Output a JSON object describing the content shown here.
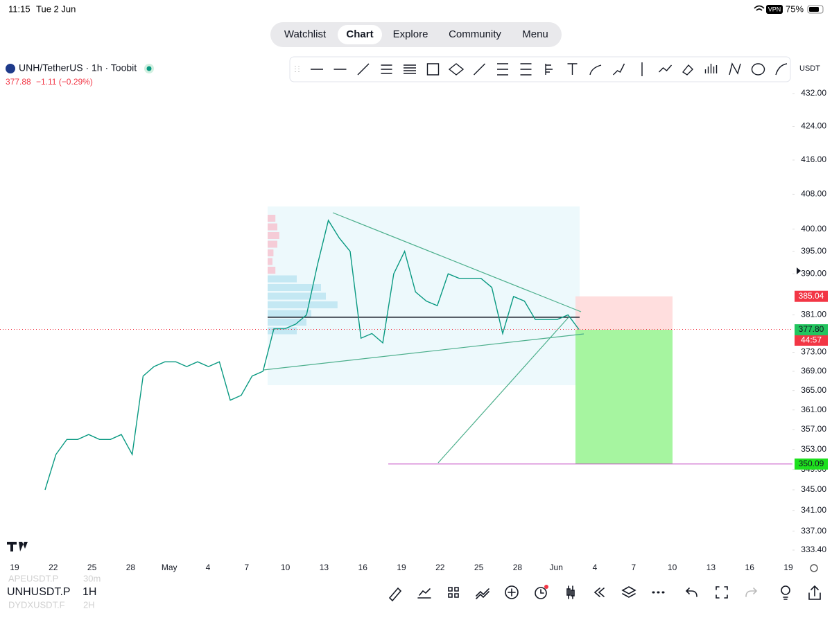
{
  "status_bar": {
    "time": "11:15",
    "date": "Tue 2 Jun",
    "vpn": "VPN",
    "battery": "75%"
  },
  "nav": {
    "tabs": [
      "Watchlist",
      "Chart",
      "Explore",
      "Community",
      "Menu"
    ],
    "active": 1
  },
  "symbol": {
    "name": "UNH/TetherUS · 1h · Toobit",
    "last": "377.88",
    "change": "−1.11 (−0.29%)"
  },
  "currency": "USDT",
  "chart_data": {
    "type": "line",
    "color": "#089981",
    "log": true,
    "values": [
      345,
      352,
      355,
      355,
      356,
      355,
      355,
      356,
      352,
      368,
      370,
      371,
      371,
      370,
      371,
      370,
      371,
      363,
      364,
      368,
      369,
      378,
      378,
      379,
      381,
      392,
      402,
      398,
      395,
      376,
      377,
      375,
      390,
      395,
      386,
      384,
      383,
      390,
      389,
      389,
      389,
      387,
      377,
      385,
      384,
      380,
      380,
      380,
      381,
      377.88
    ],
    "ylim": [
      333.4,
      432
    ],
    "yticks": [
      {
        "value": 432,
        "label": "432.00"
      },
      {
        "value": 424,
        "label": "424.00"
      },
      {
        "value": 416,
        "label": "416.00"
      },
      {
        "value": 408,
        "label": "408.00"
      },
      {
        "value": 400,
        "label": "400.00"
      },
      {
        "value": 395,
        "label": "395.00"
      },
      {
        "value": 390,
        "label": "390.00"
      },
      {
        "value": 381,
        "label": "381.00"
      },
      {
        "value": 373,
        "label": "373.00"
      },
      {
        "value": 369,
        "label": "369.00"
      },
      {
        "value": 365,
        "label": "365.00"
      },
      {
        "value": 361,
        "label": "361.00"
      },
      {
        "value": 357,
        "label": "357.00"
      },
      {
        "value": 353,
        "label": "353.00"
      },
      {
        "value": 349,
        "label": "349.00"
      },
      {
        "value": 345,
        "label": "345.00"
      },
      {
        "value": 341,
        "label": "341.00"
      },
      {
        "value": 337,
        "label": "337.00"
      },
      {
        "value": 333.4,
        "label": "333.40"
      }
    ],
    "xticks": [
      "19",
      "22",
      "25",
      "28",
      "May",
      "4",
      "7",
      "10",
      "13",
      "16",
      "19",
      "22",
      "25",
      "28",
      "Jun",
      "4",
      "7",
      "10",
      "13",
      "16",
      "19"
    ],
    "position": {
      "stop": 385.04,
      "entry": {
        "value": 377.8,
        "label": "377.80"
      },
      "target": 350.09,
      "countdown": "44:57"
    },
    "level": 380.5,
    "volume_profile": [
      8,
      10,
      12,
      10,
      6,
      5,
      8,
      30,
      55,
      60,
      72,
      45,
      40,
      30
    ]
  },
  "bottom_bar": {
    "symbol": "UNHUSDT.P",
    "interval": "1H",
    "ghost": [
      "APEUSDT.P",
      "30m",
      "DYDXUSDT.F",
      "2H"
    ]
  }
}
